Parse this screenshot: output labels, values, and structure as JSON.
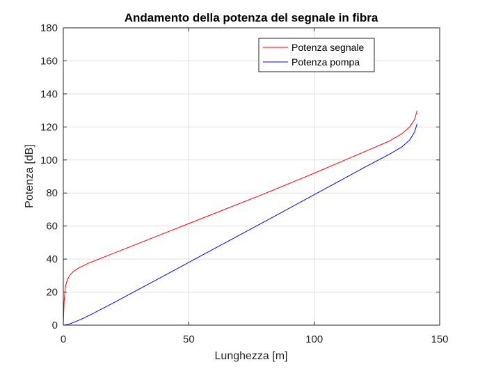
{
  "chart_data": {
    "type": "line",
    "title": "Andamento della potenza del segnale in fibra",
    "xlabel": "Lunghezza [m]",
    "ylabel": "Potenza [dB]",
    "xlim": [
      0,
      150
    ],
    "ylim": [
      0,
      180
    ],
    "xticks": [
      "0",
      "50",
      "100",
      "150"
    ],
    "yticks": [
      "0",
      "20",
      "40",
      "60",
      "80",
      "100",
      "120",
      "140",
      "160",
      "180"
    ],
    "grid": true,
    "legend_position": "top-right",
    "series": [
      {
        "name": "Potenza segnale",
        "color": "#ff0000",
        "x": [
          0,
          0.3,
          0.8,
          1.5,
          2.5,
          4,
          6,
          10,
          20,
          40,
          60,
          80,
          100,
          120,
          130,
          135,
          138,
          140,
          141
        ],
        "y": [
          0,
          14,
          23,
          27,
          30,
          32.5,
          34.5,
          37.5,
          43.5,
          55.5,
          67.5,
          79.5,
          92,
          105,
          111.5,
          116,
          120,
          124.5,
          130
        ]
      },
      {
        "name": "Potenza pompa",
        "color": "#0000ff",
        "x": [
          0,
          1,
          2,
          3,
          5,
          8,
          12,
          20,
          40,
          60,
          80,
          100,
          120,
          130,
          135,
          138,
          140,
          141
        ],
        "y": [
          0,
          0.2,
          0.5,
          1,
          2.2,
          4.2,
          7.2,
          13.5,
          29.8,
          46.2,
          62.5,
          79,
          95.5,
          103.5,
          108,
          112,
          117,
          122
        ]
      }
    ]
  }
}
